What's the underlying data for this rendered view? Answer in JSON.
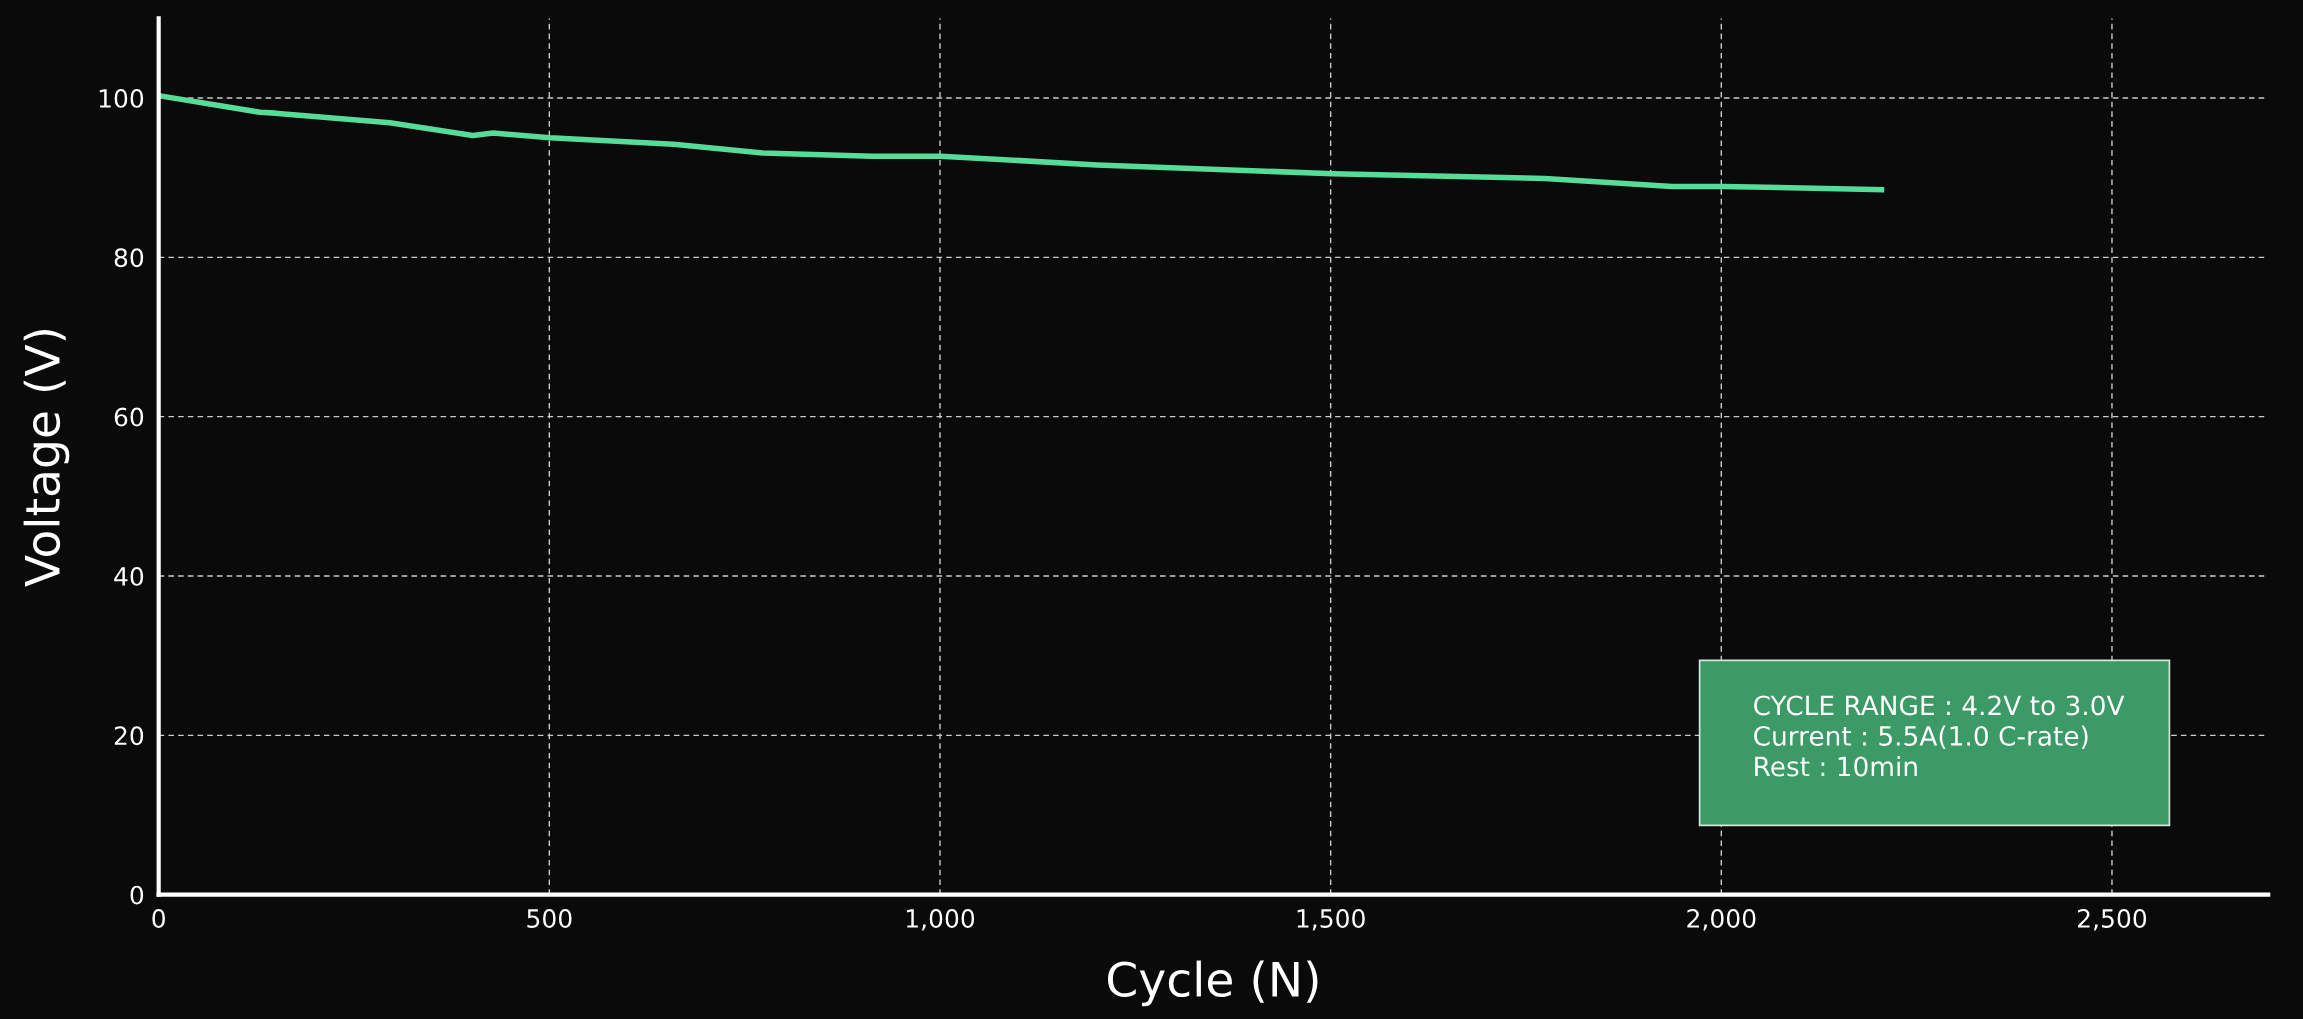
{
  "chart_data": {
    "type": "line",
    "xlabel": "Cycle (N)",
    "ylabel": "Voltage (V)",
    "x": [
      0,
      130,
      149,
      296,
      402,
      428,
      501,
      659,
      773,
      913,
      1001,
      1201,
      1503,
      1774,
      1937,
      2003,
      2205
    ],
    "series": [
      {
        "color": "#55dc98",
        "values": [
          100.3,
          98.2,
          98.1,
          96.9,
          95.3,
          95.6,
          95.0,
          94.2,
          93.1,
          92.7,
          92.7,
          91.6,
          90.5,
          89.9,
          88.9,
          88.9,
          88.5
        ]
      }
    ],
    "xlim": [
      0,
      2700
    ],
    "ylim": [
      0,
      110
    ],
    "xticks": [
      {
        "value": 0,
        "label": "0"
      },
      {
        "value": 500,
        "label": "500"
      },
      {
        "value": 1000,
        "label": "1,000"
      },
      {
        "value": 1500,
        "label": "1,500"
      },
      {
        "value": 2000,
        "label": "2,000"
      },
      {
        "value": 2500,
        "label": "2,500"
      }
    ],
    "yticks": [
      0,
      20,
      40,
      60,
      80,
      100
    ],
    "grid": true,
    "line_style": "solid",
    "marker": "none",
    "annotations": [
      "CYCLE RANGE : 4.2V to 3.0V",
      "Current : 5.5A(1.0 C-rate)",
      "Rest : 10min"
    ]
  }
}
